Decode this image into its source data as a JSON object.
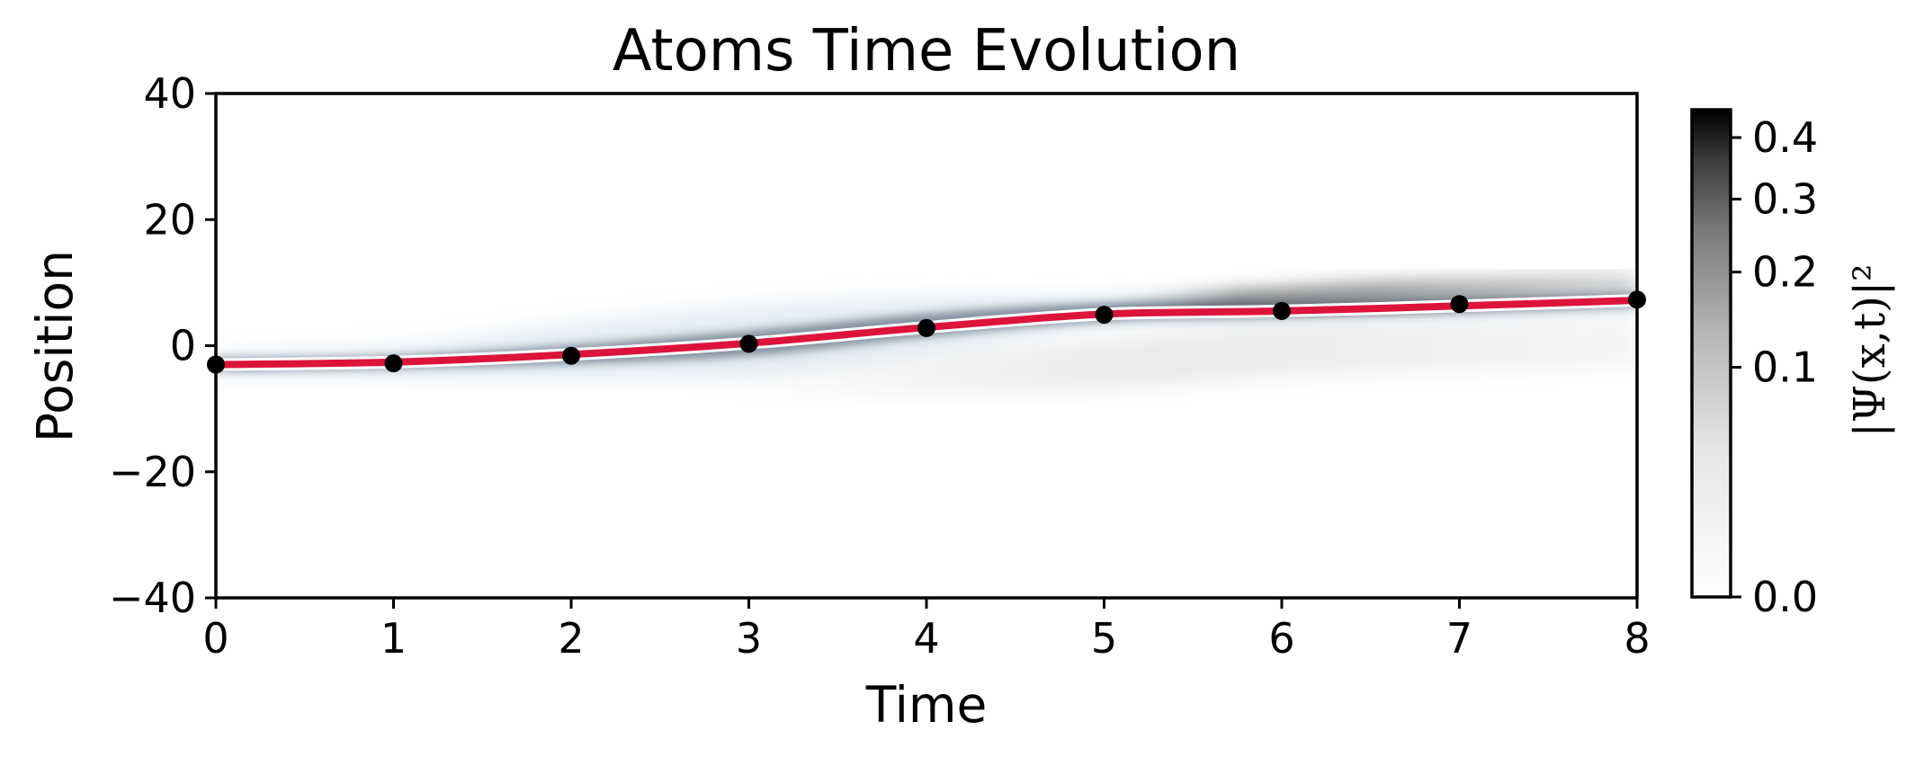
{
  "chart_data": {
    "type": "heatmap",
    "title": "Atoms Time Evolution",
    "xlabel": "Time",
    "ylabel": "Position",
    "xlim": [
      0,
      8
    ],
    "ylim": [
      -40,
      40
    ],
    "x_ticks": [
      "0",
      "1",
      "2",
      "3",
      "4",
      "5",
      "6",
      "7",
      "8"
    ],
    "y_ticks": [
      "40",
      "20",
      "0",
      "−20",
      "−40"
    ],
    "grid": false,
    "heatmap": {
      "quantity": "|Ψ(x,t)|²",
      "colormap": "white-to-black",
      "range": [
        0.0,
        0.45
      ],
      "colorbar_ticks": [
        "0.4",
        "0.3",
        "0.2",
        "0.1",
        "0.0"
      ],
      "colorbar_tick_values": [
        0.4,
        0.3,
        0.2,
        0.1,
        0.0
      ],
      "colorbar_scale": "sqrt",
      "colorbar_label": "|Ψ(x,t)|²"
    },
    "series": [
      {
        "type": "line",
        "color": "#dc143c",
        "x": [
          0,
          1,
          2,
          3,
          4,
          5,
          6,
          7,
          8
        ],
        "y": [
          -3,
          -2.6,
          -1.4,
          0.4,
          2.9,
          5.0,
          5.5,
          6.3,
          7.2
        ]
      },
      {
        "type": "scatter",
        "color": "#000000",
        "x": [
          0,
          1,
          2,
          3,
          4,
          5,
          6,
          7,
          8
        ],
        "y": [
          -3,
          -2.8,
          -1.6,
          0.3,
          2.8,
          4.9,
          5.5,
          6.6,
          7.3
        ]
      }
    ]
  }
}
